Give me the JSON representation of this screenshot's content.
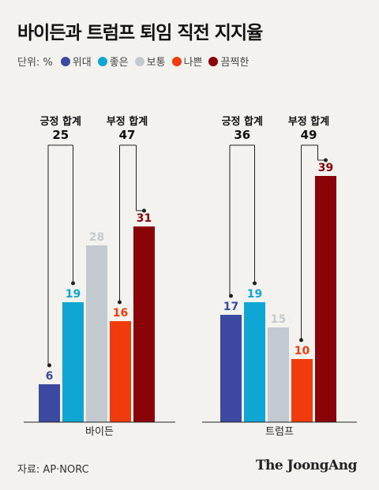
{
  "title": "바이든과 트럼프 퇴임 직전 지지율",
  "unit_label": "단위: %",
  "source": "자료: AP·NORC",
  "brand": "The JoongAng",
  "chart_data": {
    "type": "bar",
    "categories": [
      "위대",
      "좋은",
      "보통",
      "나쁜",
      "끔찍한"
    ],
    "colors": [
      "#3b4aa0",
      "#0fa6d4",
      "#c2c9cf",
      "#f03c0c",
      "#8a0309"
    ],
    "series": [
      {
        "name": "바이든",
        "values": [
          6,
          19,
          28,
          16,
          31
        ],
        "positive_label": "긍정 합계",
        "positive_total": 25,
        "negative_label": "부정 합계",
        "negative_total": 47
      },
      {
        "name": "트럼프",
        "values": [
          17,
          19,
          15,
          10,
          39
        ],
        "positive_label": "긍정 합계",
        "positive_total": 36,
        "negative_label": "부정 합계",
        "negative_total": 49
      }
    ],
    "ylim": [
      0,
      39
    ],
    "legend_position": "top-left",
    "grid": false
  }
}
